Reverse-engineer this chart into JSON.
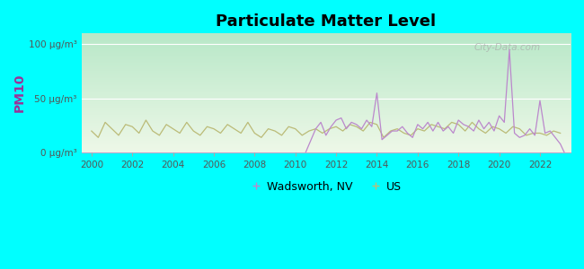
{
  "title": "Particulate Matter Level",
  "ylabel": "PM10",
  "background_color": "#00ffff",
  "plot_bg_top_color": "#b8e8c8",
  "plot_bg_bottom_color": "#eef8e8",
  "ylim": [
    0,
    110
  ],
  "yticks": [
    0,
    50,
    100
  ],
  "ytick_labels": [
    "0 μg/m³",
    "50 μg/m³",
    "100 μg/m³"
  ],
  "xlim": [
    1999.5,
    2023.5
  ],
  "xticks": [
    2000,
    2002,
    2004,
    2006,
    2008,
    2010,
    2012,
    2014,
    2016,
    2018,
    2020,
    2022
  ],
  "wadsworth_color": "#bb88cc",
  "us_color": "#bbbb77",
  "wadsworth_label": "Wadsworth, NV",
  "us_label": "US",
  "watermark": "City-Data.com",
  "us_x": [
    2000.0,
    2000.33,
    2000.67,
    2001.0,
    2001.33,
    2001.67,
    2002.0,
    2002.33,
    2002.67,
    2003.0,
    2003.33,
    2003.67,
    2004.0,
    2004.33,
    2004.67,
    2005.0,
    2005.33,
    2005.67,
    2006.0,
    2006.33,
    2006.67,
    2007.0,
    2007.33,
    2007.67,
    2008.0,
    2008.33,
    2008.67,
    2009.0,
    2009.33,
    2009.67,
    2010.0,
    2010.33,
    2010.67,
    2011.0,
    2011.33,
    2011.67,
    2012.0,
    2012.33,
    2012.67,
    2013.0,
    2013.33,
    2013.67,
    2014.0,
    2014.33,
    2014.67,
    2015.0,
    2015.33,
    2015.67,
    2016.0,
    2016.33,
    2016.67,
    2017.0,
    2017.33,
    2017.67,
    2018.0,
    2018.33,
    2018.67,
    2019.0,
    2019.33,
    2019.67,
    2020.0,
    2020.33,
    2020.67,
    2021.0,
    2021.33,
    2021.67,
    2022.0,
    2022.33,
    2022.67,
    2023.0
  ],
  "us_y": [
    20,
    14,
    28,
    22,
    16,
    26,
    24,
    18,
    30,
    20,
    16,
    26,
    22,
    18,
    28,
    20,
    16,
    24,
    22,
    18,
    26,
    22,
    18,
    28,
    18,
    14,
    22,
    20,
    16,
    24,
    22,
    16,
    20,
    22,
    18,
    22,
    24,
    20,
    26,
    24,
    20,
    28,
    26,
    14,
    20,
    22,
    18,
    16,
    22,
    20,
    26,
    24,
    22,
    28,
    26,
    20,
    28,
    22,
    18,
    24,
    22,
    18,
    24,
    22,
    16,
    18,
    18,
    16,
    20,
    18
  ],
  "wadsworth_x": [
    2010.5,
    2011.0,
    2011.25,
    2011.5,
    2011.75,
    2012.0,
    2012.25,
    2012.5,
    2012.75,
    2013.0,
    2013.25,
    2013.5,
    2013.75,
    2014.0,
    2014.25,
    2014.5,
    2014.75,
    2015.0,
    2015.25,
    2015.5,
    2015.75,
    2016.0,
    2016.25,
    2016.5,
    2016.75,
    2017.0,
    2017.25,
    2017.5,
    2017.75,
    2018.0,
    2018.25,
    2018.5,
    2018.75,
    2019.0,
    2019.25,
    2019.5,
    2019.75,
    2020.0,
    2020.25,
    2020.5,
    2020.75,
    2021.0,
    2021.25,
    2021.5,
    2021.75,
    2022.0,
    2022.25,
    2022.5,
    2022.75,
    2023.0,
    2023.2
  ],
  "wadsworth_y": [
    0,
    22,
    28,
    16,
    24,
    30,
    32,
    22,
    28,
    26,
    22,
    30,
    24,
    55,
    12,
    16,
    20,
    20,
    24,
    18,
    14,
    26,
    22,
    28,
    20,
    28,
    20,
    24,
    18,
    30,
    26,
    24,
    20,
    30,
    22,
    28,
    20,
    34,
    28,
    95,
    18,
    14,
    16,
    22,
    16,
    48,
    18,
    20,
    14,
    8,
    0
  ]
}
